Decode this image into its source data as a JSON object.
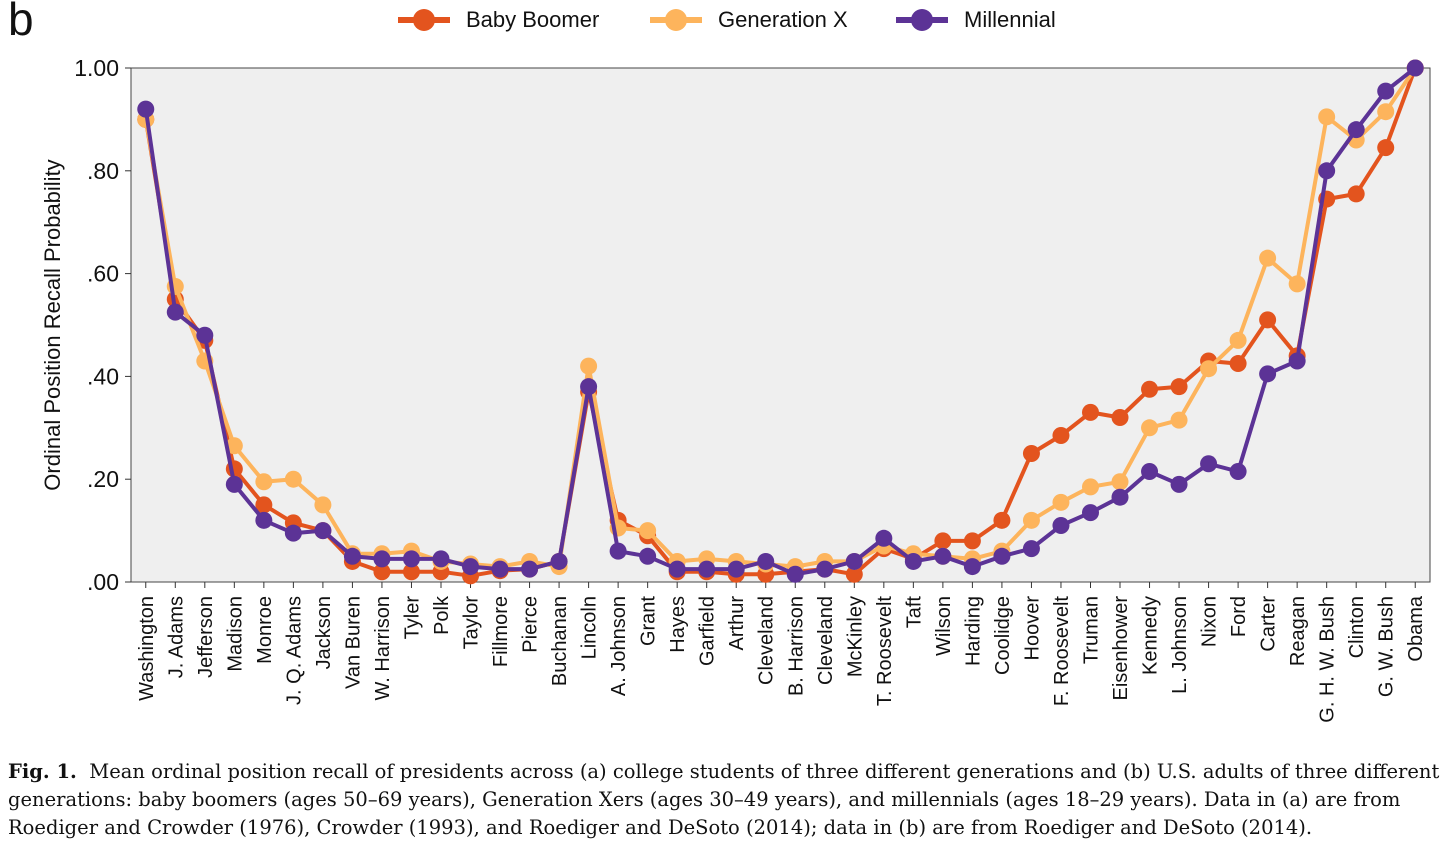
{
  "panel_label": "b",
  "caption": {
    "prefix": "Fig. 1.",
    "text": "Mean ordinal position recall of presidents across (a) college students of three different generations and (b) U.S. adults of three different generations: baby boomers (ages 50–69 years), Generation Xers (ages 30–49 years), and millennials (ages 18–29 years). Data in (a) are from Roediger and Crowder (1976), Crowder (1993), and Roediger and DeSoto (2014); data in (b) are from Roediger and DeSoto (2014)."
  },
  "chart_data": {
    "type": "line",
    "title": "",
    "xlabel": "",
    "ylabel": "Ordinal Position Recall Probability",
    "ylim": [
      0,
      1
    ],
    "yticks": [
      0,
      0.2,
      0.4,
      0.6,
      0.8,
      1.0
    ],
    "ytick_labels": [
      ".00",
      ".20",
      ".40",
      ".60",
      ".80",
      "1.00"
    ],
    "grid": false,
    "legend_position": "top",
    "categories": [
      "Washington",
      "J. Adams",
      "Jefferson",
      "Madison",
      "Monroe",
      "J. Q. Adams",
      "Jackson",
      "Van Buren",
      "W. Harrison",
      "Tyler",
      "Polk",
      "Taylor",
      "Fillmore",
      "Pierce",
      "Buchanan",
      "Lincoln",
      "A. Johnson",
      "Grant",
      "Hayes",
      "Garfield",
      "Arthur",
      "Cleveland",
      "B. Harrison",
      "Cleveland",
      "McKinley",
      "T. Roosevelt",
      "Taft",
      "Wilson",
      "Harding",
      "Coolidge",
      "Hoover",
      "F. Roosevelt",
      "Truman",
      "Eisenhower",
      "Kennedy",
      "L. Johnson",
      "Nixon",
      "Ford",
      "Carter",
      "Reagan",
      "G. H. W. Bush",
      "Clinton",
      "G. W. Bush",
      "Obama"
    ],
    "series": [
      {
        "name": "Baby Boomer",
        "color": "#E3541E",
        "values": [
          0.9,
          0.55,
          0.47,
          0.22,
          0.15,
          0.115,
          0.1,
          0.04,
          0.02,
          0.02,
          0.02,
          0.012,
          0.022,
          0.025,
          0.04,
          0.37,
          0.12,
          0.09,
          0.02,
          0.02,
          0.015,
          0.015,
          0.02,
          0.025,
          0.015,
          0.065,
          0.045,
          0.08,
          0.08,
          0.12,
          0.25,
          0.285,
          0.33,
          0.32,
          0.375,
          0.38,
          0.43,
          0.425,
          0.51,
          0.44,
          0.745,
          0.755,
          0.845,
          1.0
        ]
      },
      {
        "name": "Generation X",
        "color": "#FDB45C",
        "values": [
          0.9,
          0.575,
          0.43,
          0.265,
          0.195,
          0.2,
          0.15,
          0.055,
          0.055,
          0.06,
          0.04,
          0.035,
          0.03,
          0.04,
          0.03,
          0.42,
          0.105,
          0.1,
          0.04,
          0.045,
          0.04,
          0.035,
          0.03,
          0.04,
          0.04,
          0.07,
          0.055,
          0.05,
          0.045,
          0.06,
          0.12,
          0.155,
          0.185,
          0.195,
          0.3,
          0.315,
          0.415,
          0.47,
          0.63,
          0.58,
          0.905,
          0.86,
          0.915,
          1.0
        ]
      },
      {
        "name": "Millennial",
        "color": "#5C3396",
        "values": [
          0.92,
          0.525,
          0.48,
          0.19,
          0.12,
          0.095,
          0.1,
          0.05,
          0.045,
          0.045,
          0.045,
          0.03,
          0.025,
          0.025,
          0.04,
          0.38,
          0.06,
          0.05,
          0.025,
          0.025,
          0.025,
          0.04,
          0.015,
          0.025,
          0.04,
          0.085,
          0.04,
          0.05,
          0.03,
          0.05,
          0.065,
          0.11,
          0.135,
          0.165,
          0.215,
          0.19,
          0.23,
          0.215,
          0.405,
          0.43,
          0.8,
          0.88,
          0.955,
          1.0
        ]
      }
    ]
  }
}
